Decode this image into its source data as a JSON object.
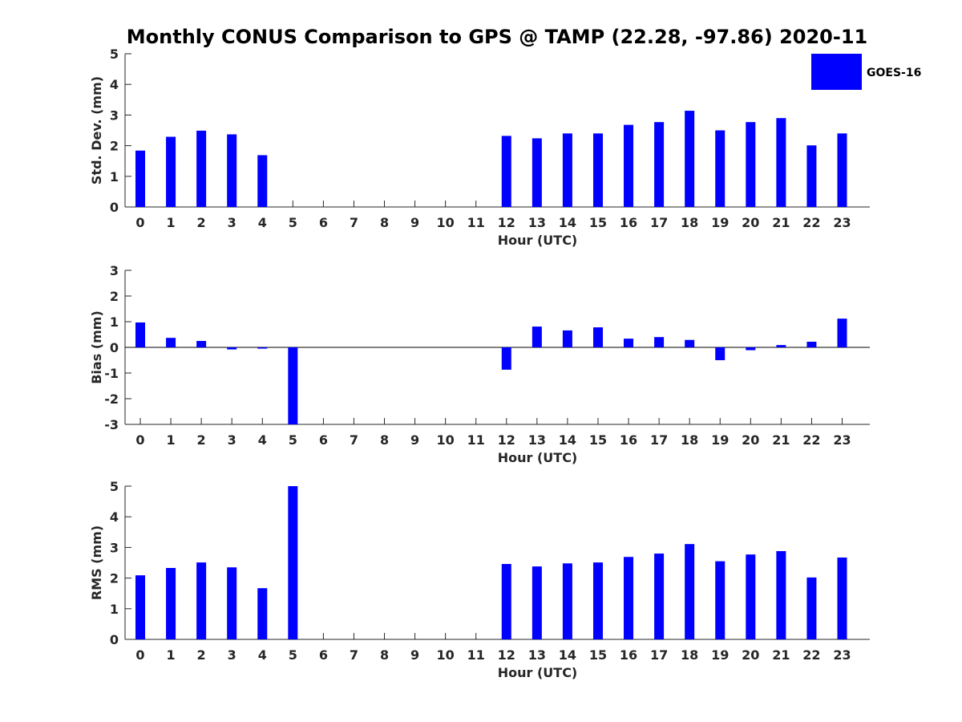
{
  "title": "Monthly CONUS Comparison to GPS @ TAMP (22.28, -97.86) 2020-11",
  "legend": {
    "label": "GOES-16",
    "color": "#0000ff",
    "position": "top-right"
  },
  "chart_data": [
    {
      "type": "bar",
      "xlabel": "Hour (UTC)",
      "ylabel": "Std. Dev. (mm)",
      "ylim": [
        0,
        5
      ],
      "yticks": [
        "0",
        "1",
        "2",
        "3",
        "4",
        "5"
      ],
      "categories": [
        "0",
        "1",
        "2",
        "3",
        "4",
        "5",
        "6",
        "7",
        "8",
        "9",
        "10",
        "11",
        "12",
        "13",
        "14",
        "15",
        "16",
        "17",
        "18",
        "19",
        "20",
        "21",
        "22",
        "23"
      ],
      "series": [
        {
          "name": "GOES-16",
          "color": "#0000ff",
          "values": [
            1.84,
            2.29,
            2.49,
            2.37,
            1.69,
            null,
            null,
            null,
            null,
            null,
            null,
            null,
            2.32,
            2.24,
            2.4,
            2.4,
            2.68,
            2.77,
            3.14,
            2.5,
            2.77,
            2.9,
            2.01,
            2.4
          ]
        }
      ]
    },
    {
      "type": "bar",
      "xlabel": "Hour (UTC)",
      "ylabel": "Bias (mm)",
      "ylim": [
        -3,
        3
      ],
      "yticks": [
        "-3",
        "-2",
        "-1",
        "0",
        "1",
        "2",
        "3"
      ],
      "categories": [
        "0",
        "1",
        "2",
        "3",
        "4",
        "5",
        "6",
        "7",
        "8",
        "9",
        "10",
        "11",
        "12",
        "13",
        "14",
        "15",
        "16",
        "17",
        "18",
        "19",
        "20",
        "21",
        "22",
        "23"
      ],
      "series": [
        {
          "name": "GOES-16",
          "color": "#0000ff",
          "values": [
            0.97,
            0.37,
            0.25,
            -0.08,
            -0.05,
            -3.0,
            null,
            null,
            null,
            null,
            null,
            null,
            -0.87,
            0.81,
            0.66,
            0.78,
            0.34,
            0.4,
            0.29,
            -0.5,
            -0.11,
            0.09,
            0.22,
            1.12
          ]
        }
      ]
    },
    {
      "type": "bar",
      "xlabel": "Hour (UTC)",
      "ylabel": "RMS (mm)",
      "ylim": [
        0,
        5
      ],
      "yticks": [
        "0",
        "1",
        "2",
        "3",
        "4",
        "5"
      ],
      "categories": [
        "0",
        "1",
        "2",
        "3",
        "4",
        "5",
        "6",
        "7",
        "8",
        "9",
        "10",
        "11",
        "12",
        "13",
        "14",
        "15",
        "16",
        "17",
        "18",
        "19",
        "20",
        "21",
        "22",
        "23"
      ],
      "series": [
        {
          "name": "GOES-16",
          "color": "#0000ff",
          "values": [
            2.09,
            2.33,
            2.51,
            2.35,
            1.67,
            5.0,
            null,
            null,
            null,
            null,
            null,
            null,
            2.46,
            2.38,
            2.48,
            2.51,
            2.69,
            2.8,
            3.11,
            2.55,
            2.77,
            2.88,
            2.02,
            2.67
          ]
        }
      ]
    }
  ]
}
